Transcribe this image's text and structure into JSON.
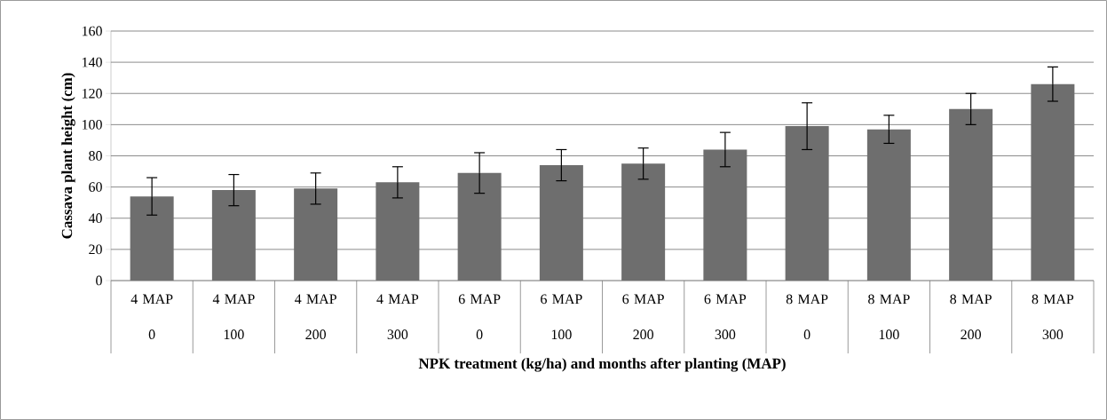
{
  "chart_data": {
    "type": "bar",
    "xlabel": "NPK treatment (kg/ha) and  months after planting (MAP)",
    "ylabel": "Cassava plant height (cm)",
    "categories": [
      "4 MAP 0",
      "4 MAP 100",
      "4 MAP 200",
      "4 MAP 300",
      "6 MAP 0",
      "6 MAP 100",
      "6 MAP 200",
      "6 MAP 300",
      "8 MAP 0",
      "8 MAP 100",
      "8 MAP 200",
      "8 MAP 300"
    ],
    "values": [
      54,
      58,
      59,
      63,
      69,
      74,
      75,
      84,
      99,
      97,
      110,
      126
    ],
    "errors": [
      12,
      10,
      10,
      10,
      13,
      10,
      10,
      11,
      15,
      9,
      10,
      11
    ],
    "color": "#6e6e6e",
    "ylim": [
      0,
      160
    ],
    "yticks": [
      0,
      20,
      40,
      60,
      80,
      100,
      120,
      140,
      160
    ],
    "grid": "y"
  }
}
